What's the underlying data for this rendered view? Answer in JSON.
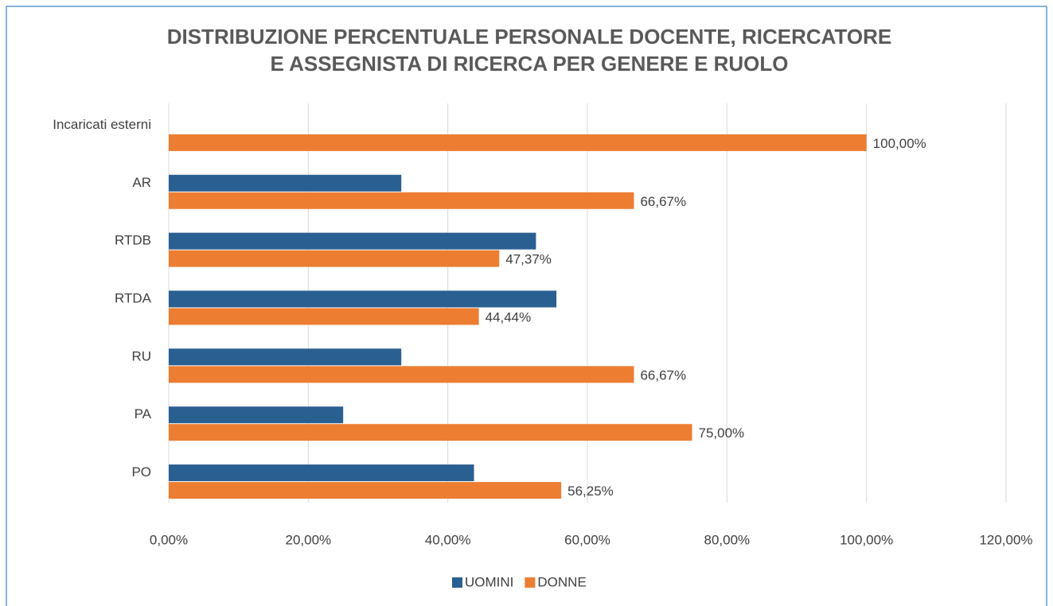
{
  "chart_data": {
    "type": "bar",
    "orientation": "horizontal",
    "title": [
      "DISTRIBUZIONE PERCENTUALE PERSONALE DOCENTE, RICERCATORE",
      "E ASSEGNISTA DI RICERCA PER GENERE E RUOLO"
    ],
    "categories": [
      "Incaricati esterni",
      "AR",
      "RTDB",
      "RTDA",
      "RU",
      "PA",
      "PO"
    ],
    "series": [
      {
        "name": "UOMINI",
        "color": "#2a5f91",
        "values": [
          0,
          33.33,
          52.63,
          55.56,
          33.33,
          25,
          43.75
        ]
      },
      {
        "name": "DONNE",
        "color": "#ed7d31",
        "values": [
          100,
          66.67,
          47.37,
          44.44,
          66.67,
          75,
          56.25
        ],
        "value_labels": [
          "100,00%",
          "66,67%",
          "47,37%",
          "44,44%",
          "66,67%",
          "75,00%",
          "56,25%"
        ]
      }
    ],
    "xlim": [
      0,
      120
    ],
    "xticks": [
      {
        "value": 0,
        "label": "0,00%"
      },
      {
        "value": 20,
        "label": "20,00%"
      },
      {
        "value": 40,
        "label": "40,00%"
      },
      {
        "value": 60,
        "label": "60,00%"
      },
      {
        "value": 80,
        "label": "80,00%"
      },
      {
        "value": 100,
        "label": "100,00%"
      },
      {
        "value": 120,
        "label": "120,00%"
      }
    ],
    "grid": true,
    "legend": "bottom"
  }
}
